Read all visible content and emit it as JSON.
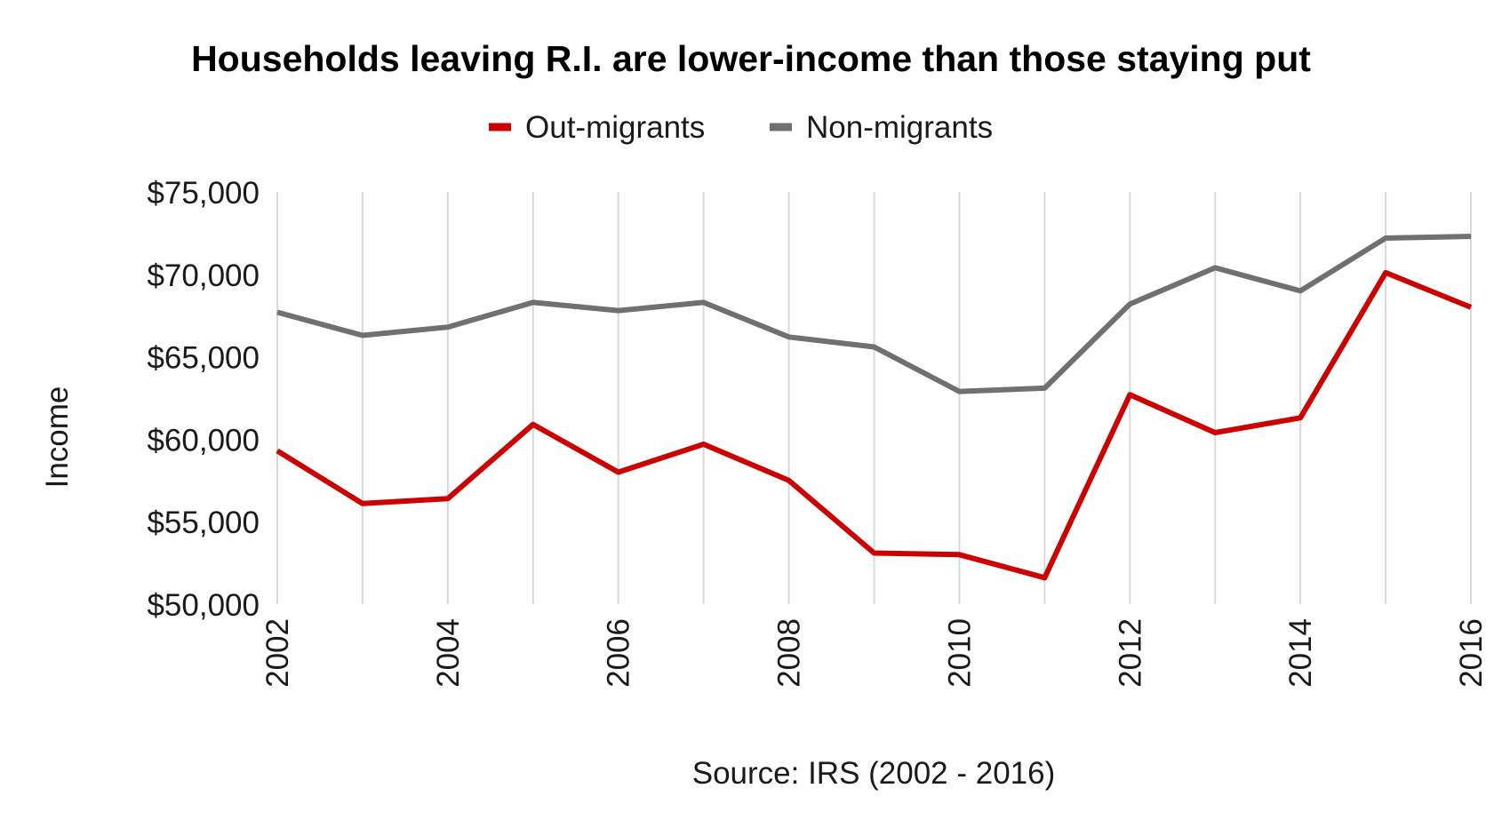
{
  "chart_data": {
    "type": "line",
    "title": "Households leaving R.I. are lower-income than those staying put",
    "ylabel": "Income",
    "xlabel": "",
    "source": "Source: IRS (2002 - 2016)",
    "x": [
      2002,
      2003,
      2004,
      2005,
      2006,
      2007,
      2008,
      2009,
      2010,
      2011,
      2012,
      2013,
      2014,
      2015,
      2016
    ],
    "x_tick_labels": [
      "2002",
      "2004",
      "2006",
      "2008",
      "2010",
      "2012",
      "2014",
      "2016"
    ],
    "x_tick_values": [
      2002,
      2004,
      2006,
      2008,
      2010,
      2012,
      2014,
      2016
    ],
    "y_tick_labels": [
      "$75,000",
      "$70,000",
      "$65,000",
      "$60,000",
      "$55,000",
      "$50,000"
    ],
    "y_tick_values": [
      75000,
      70000,
      65000,
      60000,
      55000,
      50000
    ],
    "ylim": [
      50000,
      75000
    ],
    "xlim": [
      2002,
      2016
    ],
    "grid": "vertical",
    "legend_position": "top",
    "series": [
      {
        "name": "Out-migrants",
        "color": "#cc0000",
        "values": [
          59300,
          56100,
          56400,
          60900,
          58000,
          59700,
          57500,
          53100,
          53000,
          51600,
          62700,
          60400,
          61300,
          70100,
          68000
        ]
      },
      {
        "name": "Non-migrants",
        "color": "#707070",
        "values": [
          67700,
          66300,
          66800,
          68300,
          67800,
          68300,
          66200,
          65600,
          62900,
          63100,
          68200,
          70400,
          69000,
          72200,
          72300
        ]
      }
    ]
  }
}
